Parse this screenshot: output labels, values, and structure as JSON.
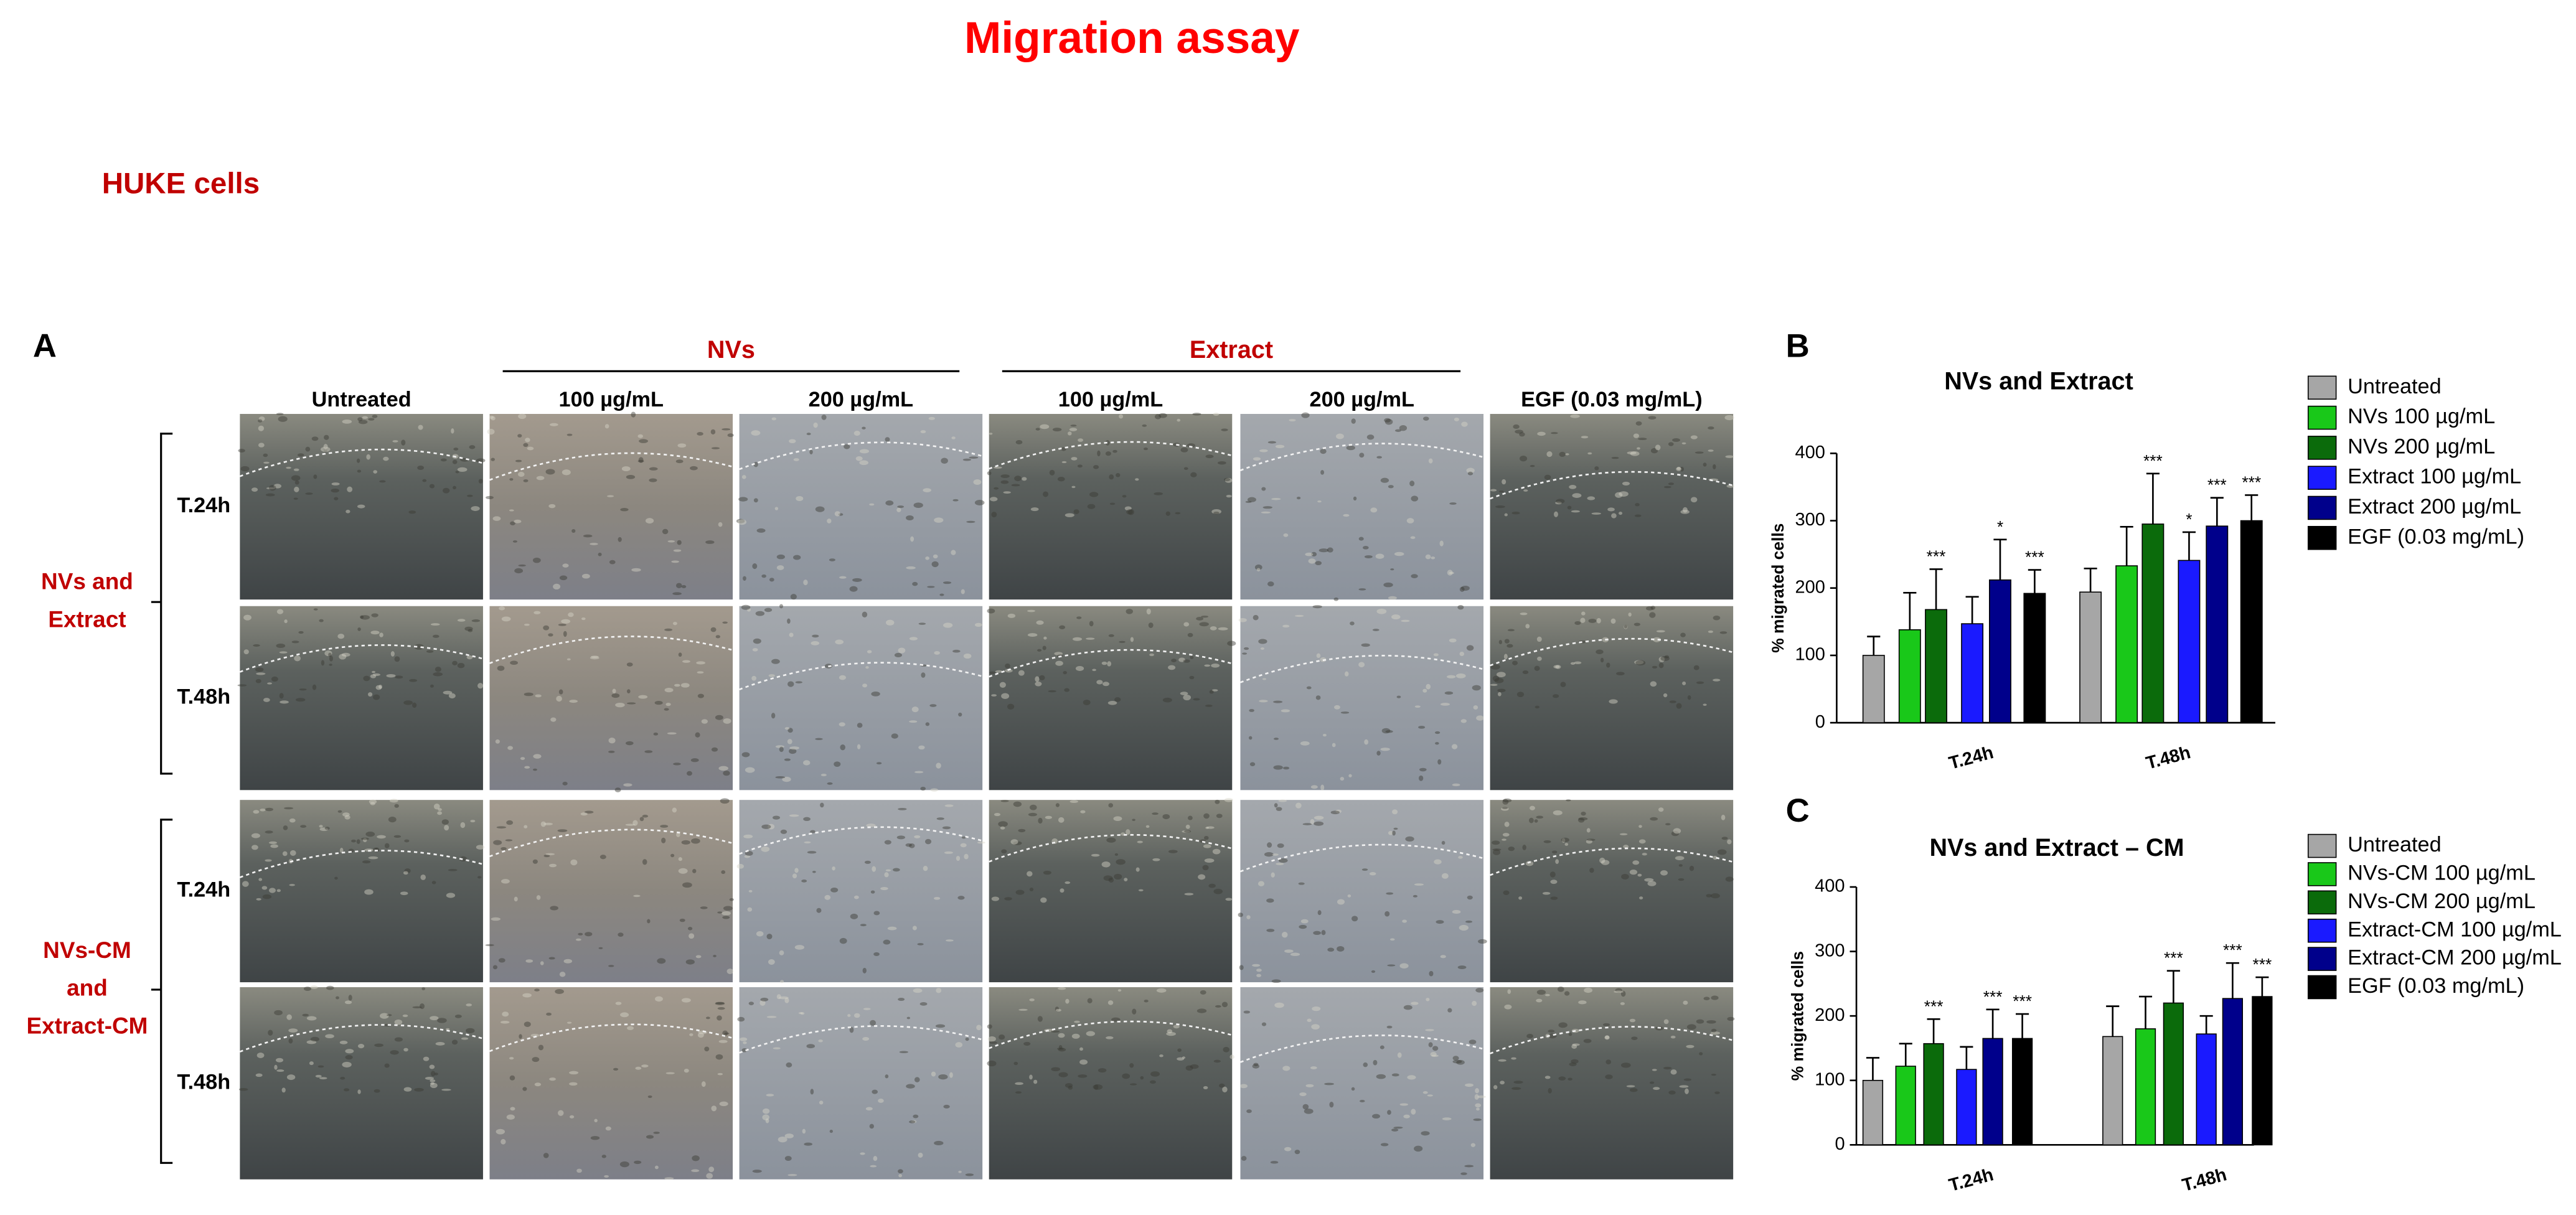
{
  "title": "Migration assay",
  "subtitle": "HUKE cells",
  "panel_a": {
    "label": "A",
    "columns": [
      "Untreated",
      "100 µg/mL",
      "200 µg/mL",
      "100 µg/mL",
      "200 µg/mL",
      "EGF (0.03 mg/mL)"
    ],
    "column_groups": [
      "NVs",
      "Extract"
    ],
    "row_groups": [
      {
        "label": [
          "NVs and",
          "Extract"
        ],
        "rows": [
          "T.24h",
          "T.48h"
        ]
      },
      {
        "label": [
          "NVs-CM",
          "and",
          "Extract-CM"
        ],
        "rows": [
          "T.24h",
          "T.48h"
        ]
      }
    ]
  },
  "chart_data": [
    {
      "type": "bar",
      "panel": "B",
      "title": "NVs and Extract",
      "ylabel": "% migrated cells",
      "categories": [
        "T.24h",
        "T.48h"
      ],
      "ylim": [
        0,
        400
      ],
      "yticks": [
        0,
        100,
        200,
        300,
        400
      ],
      "series": [
        {
          "name": "Untreated",
          "color": "#a6a6a6",
          "values": [
            100,
            194
          ],
          "errors": [
            28,
            35
          ],
          "significance": [
            null,
            null
          ]
        },
        {
          "name": "NVs 100 µg/mL",
          "color": "#19c819",
          "values": [
            138,
            233
          ],
          "errors": [
            55,
            58
          ],
          "significance": [
            null,
            null
          ]
        },
        {
          "name": "NVs 200 µg/mL",
          "color": "#0b6b0b",
          "values": [
            168,
            295
          ],
          "errors": [
            60,
            75
          ],
          "significance": [
            "***",
            "***"
          ]
        },
        {
          "name": "Extract 100 µg/mL",
          "color": "#1a1aff",
          "values": [
            147,
            241
          ],
          "errors": [
            40,
            42
          ],
          "significance": [
            null,
            "*"
          ]
        },
        {
          "name": "Extract 200 µg/mL",
          "color": "#00008b",
          "values": [
            212,
            292
          ],
          "errors": [
            60,
            42
          ],
          "significance": [
            "*",
            "***"
          ]
        },
        {
          "name": "EGF (0.03 mg/mL)",
          "color": "#000000",
          "values": [
            192,
            300
          ],
          "errors": [
            35,
            38
          ],
          "significance": [
            "***",
            "***"
          ]
        }
      ]
    },
    {
      "type": "bar",
      "panel": "C",
      "title": "NVs and Extract – CM",
      "ylabel": "% migrated cells",
      "categories": [
        "T.24h",
        "T.48h"
      ],
      "ylim": [
        0,
        400
      ],
      "yticks": [
        0,
        100,
        200,
        300,
        400
      ],
      "series": [
        {
          "name": "Untreated",
          "color": "#a6a6a6",
          "values": [
            100,
            168
          ],
          "errors": [
            35,
            47
          ],
          "significance": [
            null,
            null
          ]
        },
        {
          "name": "NVs-CM 100 µg/mL",
          "color": "#19c819",
          "values": [
            122,
            180
          ],
          "errors": [
            35,
            50
          ],
          "significance": [
            null,
            null
          ]
        },
        {
          "name": "NVs-CM 200 µg/mL",
          "color": "#0b6b0b",
          "values": [
            157,
            220
          ],
          "errors": [
            38,
            50
          ],
          "significance": [
            "***",
            "***"
          ]
        },
        {
          "name": "Extract-CM 100 µg/mL",
          "color": "#1a1aff",
          "values": [
            117,
            172
          ],
          "errors": [
            35,
            28
          ],
          "significance": [
            null,
            null
          ]
        },
        {
          "name": "Extract-CM 200 µg/mL",
          "color": "#00008b",
          "values": [
            165,
            227
          ],
          "errors": [
            45,
            55
          ],
          "significance": [
            "***",
            "***"
          ]
        },
        {
          "name": "EGF (0.03 mg/mL)",
          "color": "#000000",
          "values": [
            165,
            230
          ],
          "errors": [
            38,
            30
          ],
          "significance": [
            "***",
            "***"
          ]
        }
      ]
    }
  ]
}
